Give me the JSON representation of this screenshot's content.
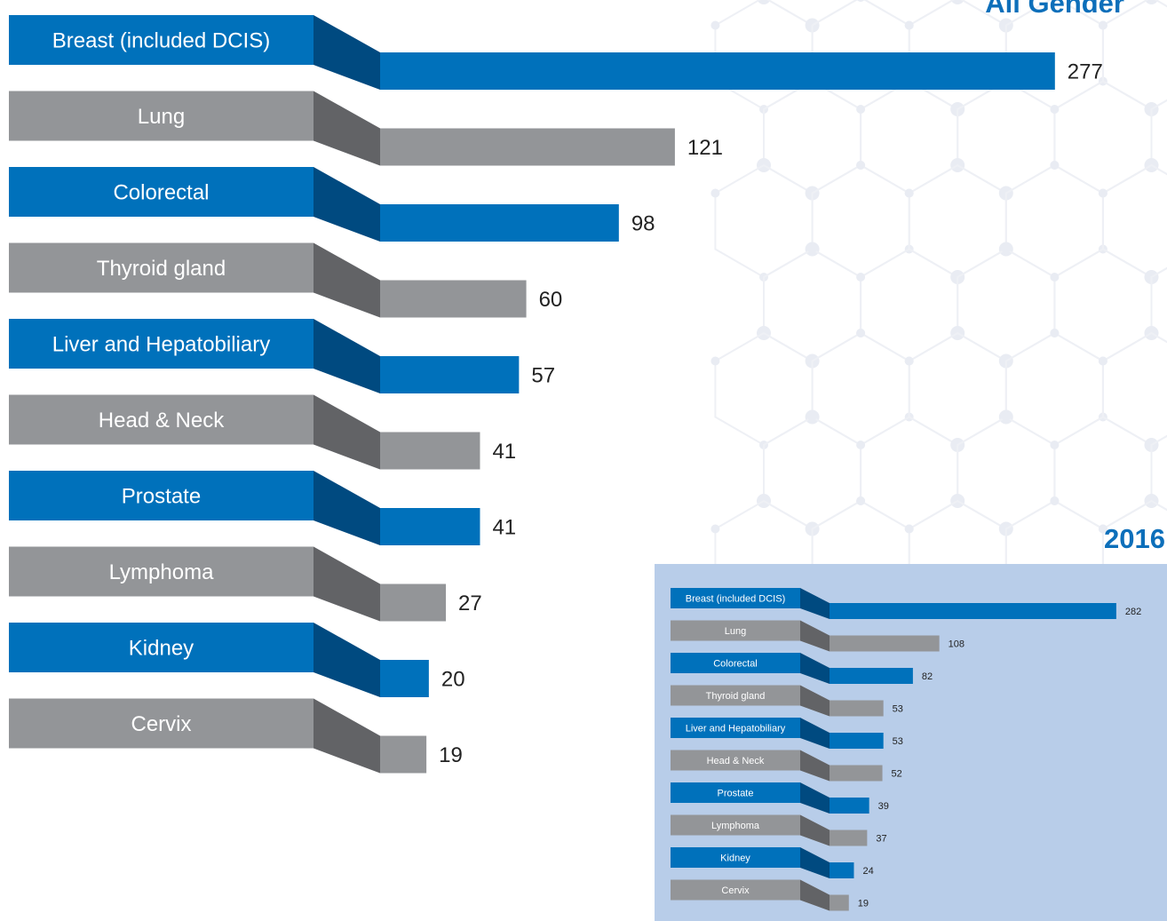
{
  "chart_data": [
    {
      "type": "bar",
      "title": "All Gender",
      "categories": [
        "Breast (included DCIS)",
        "Lung",
        "Colorectal",
        "Thyroid gland",
        "Liver and Hepatobiliary",
        "Head & Neck",
        "Prostate",
        "Lymphoma",
        "Kidney",
        "Cervix"
      ],
      "values": [
        277,
        121,
        98,
        60,
        57,
        41,
        41,
        27,
        20,
        19
      ],
      "orientation": "horizontal",
      "colors": [
        "#0071bb",
        "#939598"
      ],
      "value_labels": true,
      "grid": false
    },
    {
      "type": "bar",
      "title": "2016",
      "categories": [
        "Breast (included DCIS)",
        "Lung",
        "Colorectal",
        "Thyroid gland",
        "Liver and Hepatobiliary",
        "Head & Neck",
        "Prostate",
        "Lymphoma",
        "Kidney",
        "Cervix"
      ],
      "values": [
        282,
        108,
        82,
        53,
        53,
        52,
        39,
        37,
        24,
        19
      ],
      "orientation": "horizontal",
      "colors": [
        "#0071bb",
        "#939598"
      ],
      "value_labels": true,
      "grid": false
    }
  ],
  "colors": {
    "blue": "#0071bb",
    "blue_dark": "#004a80",
    "gray": "#939598",
    "gray_dark": "#626366",
    "title": "#0d6fba",
    "inset_background": "#b8cde9"
  }
}
